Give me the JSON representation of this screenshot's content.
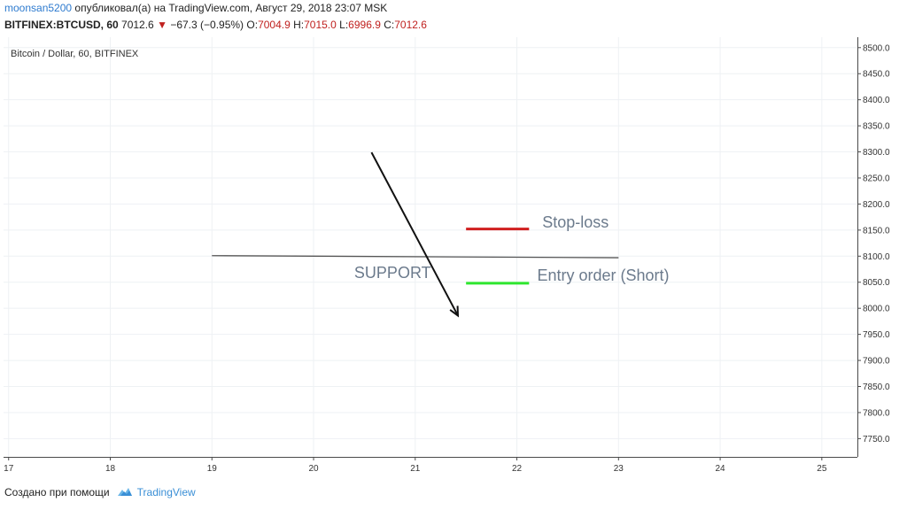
{
  "header": {
    "author": "moonsan5200",
    "published_text": "опубликовал(а) на TradingView.com, Август 29, 2018 23:07 MSK",
    "symbol": "BITFINEX:BTCUSD, 60",
    "last_price": "7012.6",
    "change_arrow": "▼",
    "change": "−67.3 (−0.95%)",
    "o_label": "O:",
    "o_value": "7004.9",
    "h_label": "H:",
    "h_value": "7015.0",
    "l_label": "L:",
    "l_value": "6996.9",
    "c_label": "C:",
    "c_value": "7012.6"
  },
  "chart_data": {
    "type": "line",
    "title": "Bitcoin / Dollar, 60, BITFINEX",
    "x_ticks": [
      "17",
      "18",
      "19",
      "20",
      "21",
      "22",
      "23",
      "24",
      "25"
    ],
    "xlim": [
      16.95,
      25.35
    ],
    "y_ticks": [
      "8500.0",
      "8450.0",
      "8400.0",
      "8350.0",
      "8300.0",
      "8250.0",
      "8200.0",
      "8150.0",
      "8100.0",
      "8050.0",
      "8000.0",
      "7950.0",
      "7900.0",
      "7850.0",
      "7800.0",
      "7750.0"
    ],
    "ylim": [
      7715,
      8520
    ],
    "grid": true,
    "drawings": [
      {
        "name": "support-line",
        "kind": "line",
        "color": "#555555",
        "points": [
          [
            19.0,
            8101
          ],
          [
            23.0,
            8097
          ]
        ]
      },
      {
        "name": "down-arrow",
        "kind": "arrow",
        "color": "#111111",
        "points": [
          [
            20.57,
            8299
          ],
          [
            21.42,
            7986
          ]
        ]
      },
      {
        "name": "stop-loss-line",
        "kind": "line",
        "color": "#d01f1f",
        "points": [
          [
            21.5,
            8152
          ],
          [
            22.12,
            8152
          ]
        ]
      },
      {
        "name": "entry-line",
        "kind": "line",
        "color": "#2ee62e",
        "points": [
          [
            21.5,
            8048
          ],
          [
            22.12,
            8048
          ]
        ]
      }
    ],
    "annotations": [
      {
        "name": "support-label",
        "text": "SUPPORT",
        "x": 20.4,
        "y": 8058
      },
      {
        "name": "stop-loss-label",
        "text": "Stop-loss",
        "x": 22.25,
        "y": 8155
      },
      {
        "name": "entry-label",
        "text": "Entry order (Short)",
        "x": 22.2,
        "y": 8053
      }
    ],
    "colors": {
      "grid": "#eef1f4",
      "axis": "#4a4a4a",
      "annotation_text": "#6b7a8c"
    }
  },
  "footer": {
    "created_with": "Создано при помощи",
    "brand": "TradingView"
  }
}
